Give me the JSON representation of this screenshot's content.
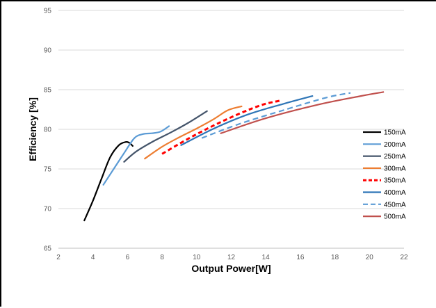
{
  "chart_data": {
    "type": "line",
    "title": "",
    "xlabel": "Output Power[W]",
    "ylabel": "Efficiency [%]",
    "xlim": [
      2,
      22
    ],
    "ylim": [
      65,
      95
    ],
    "xticks": [
      2,
      4,
      6,
      8,
      10,
      12,
      14,
      16,
      18,
      20,
      22
    ],
    "yticks": [
      65,
      70,
      75,
      80,
      85,
      90,
      95
    ],
    "grid": "horizontal",
    "legend_position": "right",
    "series": [
      {
        "name": "150mA",
        "color": "#000000",
        "dash": "solid",
        "x": [
          3.5,
          4.0,
          4.5,
          5.0,
          5.5,
          5.9,
          6.1,
          6.3
        ],
        "y": [
          68.5,
          71.0,
          73.8,
          76.5,
          78.0,
          78.4,
          78.3,
          77.9
        ]
      },
      {
        "name": "200mA",
        "color": "#5b9bd5",
        "dash": "solid",
        "x": [
          4.6,
          5.2,
          5.8,
          6.4,
          6.9,
          7.4,
          7.9,
          8.4
        ],
        "y": [
          73.0,
          75.0,
          77.0,
          78.9,
          79.4,
          79.5,
          79.7,
          80.4
        ]
      },
      {
        "name": "250mA",
        "color": "#44546a",
        "dash": "solid",
        "x": [
          5.8,
          6.5,
          7.5,
          8.5,
          9.5,
          10.6
        ],
        "y": [
          75.9,
          77.2,
          78.5,
          79.6,
          80.8,
          82.3
        ]
      },
      {
        "name": "300mA",
        "color": "#ed7d31",
        "dash": "solid",
        "x": [
          7.0,
          8.0,
          9.0,
          10.0,
          11.0,
          11.8,
          12.6
        ],
        "y": [
          76.3,
          77.8,
          79.0,
          80.1,
          81.3,
          82.4,
          82.9
        ]
      },
      {
        "name": "350mA",
        "color": "#ff0000",
        "dash": "dashed",
        "x": [
          8.0,
          9.5,
          11.0,
          12.5,
          13.8,
          14.8
        ],
        "y": [
          76.9,
          78.8,
          80.5,
          82.0,
          83.1,
          83.6
        ]
      },
      {
        "name": "400mA",
        "color": "#2e75b6",
        "dash": "solid",
        "x": [
          9.1,
          11.0,
          13.0,
          15.0,
          16.7
        ],
        "y": [
          78.0,
          80.1,
          81.9,
          83.2,
          84.2
        ]
      },
      {
        "name": "450mA",
        "color": "#5b9bd5",
        "dash": "dashed",
        "x": [
          10.3,
          12.5,
          15.0,
          17.5,
          18.9
        ],
        "y": [
          78.9,
          80.7,
          82.4,
          84.0,
          84.6
        ]
      },
      {
        "name": "500mA",
        "color": "#c0504d",
        "dash": "solid",
        "x": [
          11.4,
          14.0,
          17.0,
          19.5,
          20.8
        ],
        "y": [
          79.5,
          81.4,
          83.1,
          84.2,
          84.7
        ]
      }
    ]
  }
}
